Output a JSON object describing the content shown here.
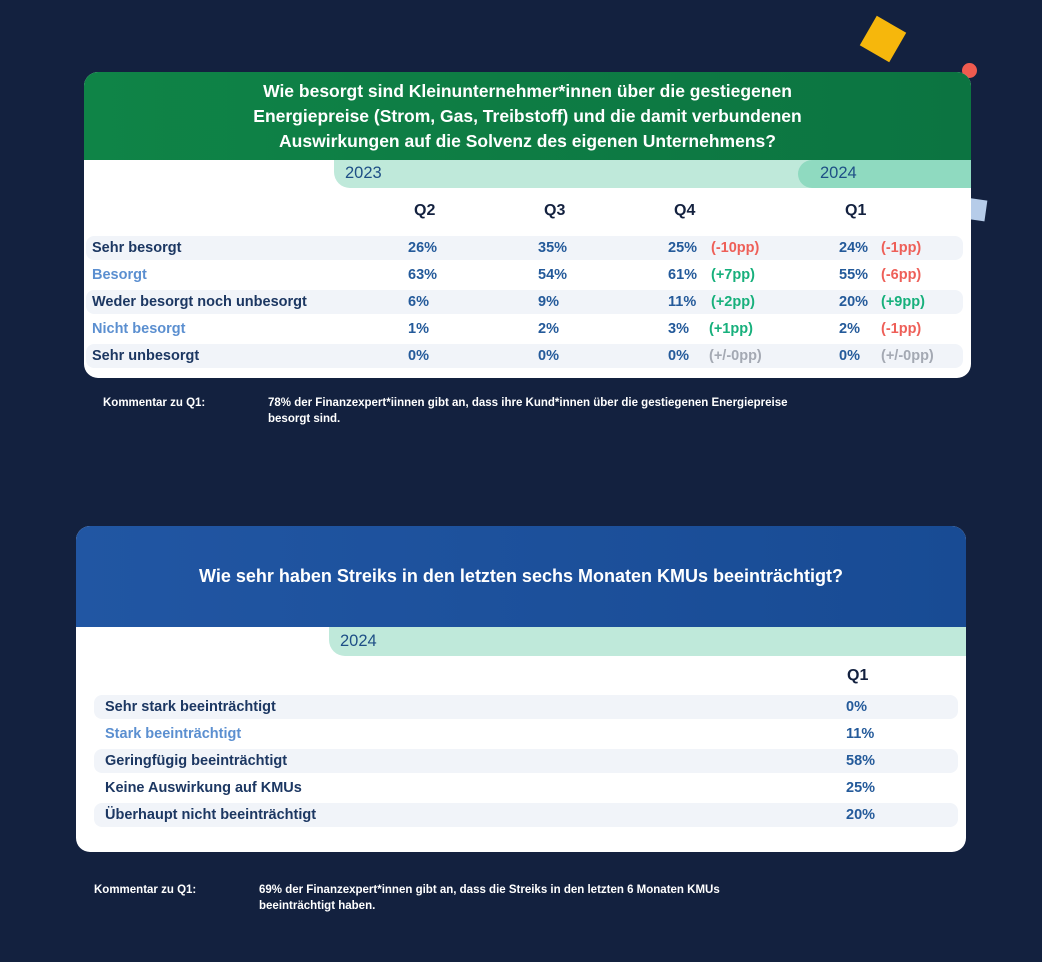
{
  "colors": {
    "background": "#13213f",
    "header_green": "#0f8447",
    "header_blue": "#2156a3",
    "band": "#bfe9da",
    "negative_delta": "#ee5f58",
    "positive_delta": "#17b07c",
    "neutral_delta": "#a4a9b3",
    "decoration_yellow": "#f6b70c",
    "decoration_red": "#ef5b4f"
  },
  "chart_data": [
    {
      "type": "table",
      "title_lines": [
        "Wie besorgt sind Kleinunternehmer*innen über die gestiegenen",
        "Energiepreise (Strom, Gas, Treibstoff) und die damit verbundenen",
        "Auswirkungen auf die Solvenz des eigenen Unternehmens?"
      ],
      "year_labels": [
        "2023",
        "2024"
      ],
      "columns": [
        "Q2",
        "Q3",
        "Q4",
        "Q1"
      ],
      "rows": [
        {
          "label": "Sehr besorgt",
          "values": [
            "26%",
            "35%",
            "25%",
            "24%"
          ],
          "q4_change": "(-10pp)",
          "q1_change": "(-1pp)"
        },
        {
          "label": "Besorgt",
          "values": [
            "63%",
            "54%",
            "61%",
            "55%"
          ],
          "q4_change": "(+7pp)",
          "q1_change": "(-6pp)"
        },
        {
          "label": "Weder besorgt noch unbesorgt",
          "values": [
            "6%",
            "9%",
            "11%",
            "20%"
          ],
          "q4_change": "(+2pp)",
          "q1_change": "(+9pp)"
        },
        {
          "label": "Nicht besorgt",
          "values": [
            "1%",
            "2%",
            "3%",
            "2%"
          ],
          "q4_change": "(+1pp)",
          "q1_change": "(-1pp)"
        },
        {
          "label": "Sehr unbesorgt",
          "values": [
            "0%",
            "0%",
            "0%",
            "0%"
          ],
          "q4_change": "(+/-0pp)",
          "q1_change": "(+/-0pp)"
        }
      ],
      "comment_label": "Kommentar zu Q1:",
      "comment_lines": [
        "78% der Finanzexpert*iinnen gibt an, dass ihre Kund*innen über die gestiegenen Energiepreise",
        "besorgt sind."
      ]
    },
    {
      "type": "table",
      "title": "Wie sehr haben Streiks in den letzten sechs Monaten KMUs beeinträchtigt?",
      "year_labels": [
        "2024"
      ],
      "columns": [
        "Q1"
      ],
      "rows": [
        {
          "label": "Sehr stark beeinträchtigt",
          "values": [
            "0%"
          ]
        },
        {
          "label": "Stark beeinträchtigt",
          "values": [
            "11%"
          ]
        },
        {
          "label": "Geringfügig beeinträchtigt",
          "values": [
            "58%"
          ]
        },
        {
          "label": "Keine Auswirkung auf KMUs",
          "values": [
            "25%"
          ]
        },
        {
          "label": "Überhaupt nicht beeinträchtigt",
          "values": [
            "20%"
          ]
        }
      ],
      "comment_label": "Kommentar zu Q1:",
      "comment_lines": [
        "69% der Finanzexpert*innen gibt an, dass die Streiks in den letzten 6 Monaten KMUs",
        "beeinträchtigt haben."
      ]
    }
  ]
}
